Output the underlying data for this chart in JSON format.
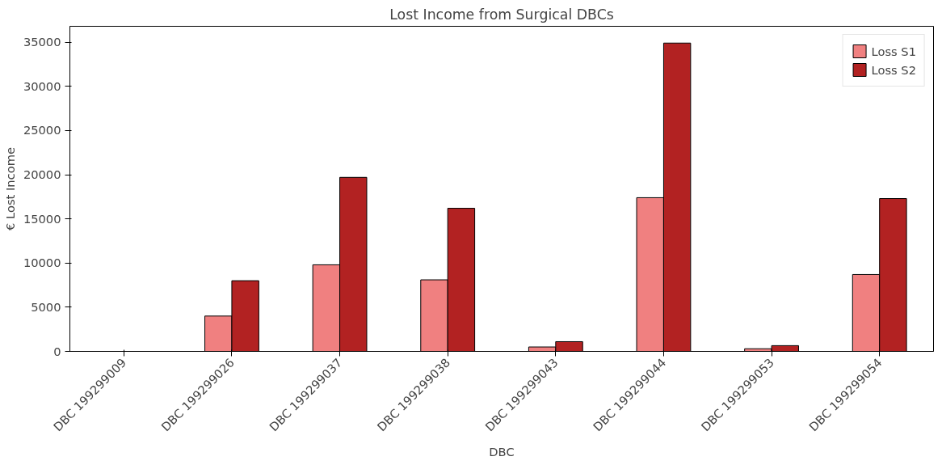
{
  "chart_data": {
    "type": "bar",
    "title": "Lost Income from Surgical DBCs",
    "xlabel": "DBC",
    "ylabel": "€ Lost Income",
    "categories": [
      "DBC 199299009",
      "DBC 199299026",
      "DBC 199299037",
      "DBC 199299038",
      "DBC 199299043",
      "DBC 199299044",
      "DBC 199299053",
      "DBC 199299054"
    ],
    "series": [
      {
        "name": "Loss S1",
        "color": "#f08080",
        "values": [
          null,
          4000,
          9800,
          8100,
          500,
          17400,
          300,
          8700
        ]
      },
      {
        "name": "Loss S2",
        "color": "#b22222",
        "values": [
          null,
          8000,
          19700,
          16200,
          1100,
          34900,
          650,
          17300
        ]
      }
    ],
    "ylim": [
      0,
      36800
    ],
    "yticks": [
      0,
      5000,
      10000,
      15000,
      20000,
      25000,
      30000,
      35000
    ],
    "grid": false,
    "legend": "top right"
  }
}
